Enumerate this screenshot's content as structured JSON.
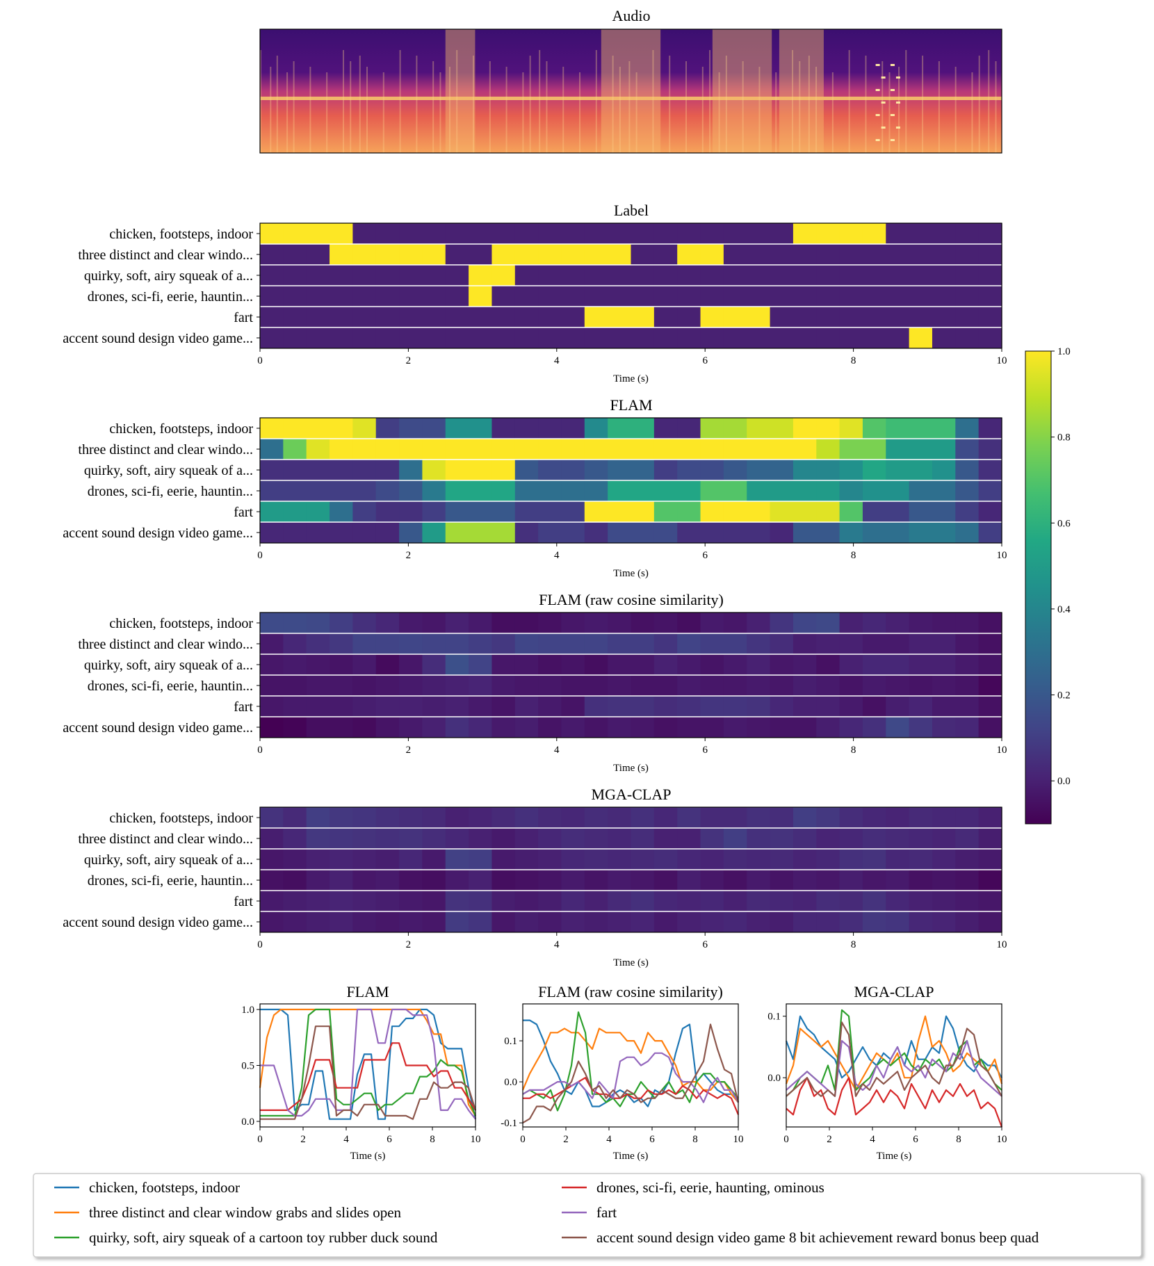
{
  "colors": {
    "viridis": [
      "#440154",
      "#482475",
      "#414487",
      "#355f8d",
      "#2a788e",
      "#21918c",
      "#22a884",
      "#44bf70",
      "#7ad151",
      "#bddf26",
      "#fde725"
    ],
    "series": [
      "#1f77b4",
      "#ff7f0e",
      "#2ca02c",
      "#d62728",
      "#9467bd",
      "#8c564b"
    ]
  },
  "chart_data": [
    {
      "type": "heatmap",
      "id": "audio",
      "title": "Audio",
      "note": "spectrogram (inferno colormap), no axes",
      "bright_events_s": [
        [
          2.5,
          2.9
        ],
        [
          4.6,
          5.4
        ],
        [
          6.1,
          6.9
        ],
        [
          7.0,
          7.6
        ]
      ],
      "blips_s": [
        8.3,
        8.5
      ]
    },
    {
      "type": "heatmap",
      "id": "label",
      "title": "Label",
      "rows": [
        "chicken, footsteps, indoor",
        "three distinct and clear windo...",
        "quirky, soft, airy squeak of a...",
        "drones, sci-fi, eerie, hauntin...",
        "fart",
        "accent sound design video game..."
      ],
      "xlabel": "Time (s)",
      "xlim": [
        0,
        10
      ],
      "xticks": [
        "0",
        "2",
        "4",
        "6",
        "8",
        "10"
      ],
      "ncols": 32,
      "values": [
        [
          1,
          1,
          1,
          1,
          0,
          0,
          0,
          0,
          0,
          0,
          0,
          0,
          0,
          0,
          0,
          0,
          0,
          0,
          0,
          0,
          0,
          0,
          0,
          1,
          1,
          1,
          1,
          0,
          0,
          0,
          0,
          0
        ],
        [
          0,
          0,
          0,
          1,
          1,
          1,
          1,
          1,
          0,
          0,
          1,
          1,
          1,
          1,
          1,
          1,
          0,
          0,
          1,
          1,
          0,
          0,
          0,
          0,
          0,
          0,
          0,
          0,
          0,
          0,
          0,
          0
        ],
        [
          0,
          0,
          0,
          0,
          0,
          0,
          0,
          0,
          0,
          1,
          1,
          0,
          0,
          0,
          0,
          0,
          0,
          0,
          0,
          0,
          0,
          0,
          0,
          0,
          0,
          0,
          0,
          0,
          0,
          0,
          0,
          0
        ],
        [
          0,
          0,
          0,
          0,
          0,
          0,
          0,
          0,
          0,
          1,
          0,
          0,
          0,
          0,
          0,
          0,
          0,
          0,
          0,
          0,
          0,
          0,
          0,
          0,
          0,
          0,
          0,
          0,
          0,
          0,
          0,
          0
        ],
        [
          0,
          0,
          0,
          0,
          0,
          0,
          0,
          0,
          0,
          0,
          0,
          0,
          0,
          0,
          1,
          1,
          1,
          0,
          0,
          1,
          1,
          1,
          0,
          0,
          0,
          0,
          0,
          0,
          0,
          0,
          0,
          0
        ],
        [
          0,
          0,
          0,
          0,
          0,
          0,
          0,
          0,
          0,
          0,
          0,
          0,
          0,
          0,
          0,
          0,
          0,
          0,
          0,
          0,
          0,
          0,
          0,
          0,
          0,
          0,
          0,
          0,
          1,
          0,
          0,
          0
        ]
      ]
    },
    {
      "type": "heatmap",
      "id": "flam",
      "title": "FLAM",
      "rows": [
        "chicken, footsteps, indoor",
        "three distinct and clear windo...",
        "quirky, soft, airy squeak of a...",
        "drones, sci-fi, eerie, hauntin...",
        "fart",
        "accent sound design video game..."
      ],
      "xlabel": "Time (s)",
      "xlim": [
        0,
        10
      ],
      "xticks": [
        "0",
        "2",
        "4",
        "6",
        "8",
        "10"
      ],
      "ncols": 32,
      "values": [
        [
          1.0,
          1.0,
          1.0,
          1.0,
          0.95,
          0.1,
          0.15,
          0.15,
          0.45,
          0.45,
          0.02,
          0.02,
          0.02,
          0.02,
          0.42,
          0.6,
          0.6,
          0.02,
          0.02,
          0.85,
          0.85,
          0.92,
          0.92,
          1.0,
          1.0,
          0.95,
          0.7,
          0.65,
          0.65,
          0.65,
          0.3,
          0.02
        ],
        [
          0.3,
          0.75,
          0.95,
          1.0,
          1.0,
          1.0,
          1.0,
          1.0,
          1.0,
          1.0,
          1.0,
          1.0,
          1.0,
          1.0,
          1.0,
          1.0,
          1.0,
          1.0,
          1.0,
          1.0,
          1.0,
          1.0,
          1.0,
          1.0,
          0.9,
          0.78,
          0.78,
          0.5,
          0.5,
          0.5,
          0.15,
          0.05
        ],
        [
          0.05,
          0.05,
          0.05,
          0.05,
          0.05,
          0.05,
          0.3,
          0.95,
          1.0,
          1.0,
          1.0,
          0.2,
          0.15,
          0.15,
          0.2,
          0.25,
          0.25,
          0.1,
          0.15,
          0.15,
          0.2,
          0.25,
          0.25,
          0.4,
          0.4,
          0.45,
          0.55,
          0.5,
          0.5,
          0.45,
          0.2,
          0.05
        ],
        [
          0.1,
          0.1,
          0.1,
          0.1,
          0.1,
          0.15,
          0.2,
          0.35,
          0.55,
          0.55,
          0.55,
          0.3,
          0.3,
          0.3,
          0.3,
          0.55,
          0.55,
          0.55,
          0.55,
          0.7,
          0.7,
          0.5,
          0.5,
          0.5,
          0.5,
          0.4,
          0.45,
          0.45,
          0.3,
          0.3,
          0.2,
          0.1
        ],
        [
          0.5,
          0.5,
          0.5,
          0.3,
          0.1,
          0.05,
          0.05,
          0.1,
          0.2,
          0.2,
          0.2,
          0.1,
          0.1,
          0.1,
          1.0,
          1.0,
          1.0,
          0.7,
          0.7,
          1.0,
          1.0,
          1.0,
          0.95,
          0.95,
          0.95,
          0.7,
          0.1,
          0.1,
          0.2,
          0.2,
          0.1,
          0.02
        ],
        [
          0.02,
          0.02,
          0.02,
          0.02,
          0.02,
          0.02,
          0.2,
          0.5,
          0.85,
          0.85,
          0.85,
          0.05,
          0.1,
          0.1,
          0.05,
          0.15,
          0.15,
          0.15,
          0.05,
          0.05,
          0.05,
          0.05,
          0.02,
          0.2,
          0.2,
          0.35,
          0.3,
          0.3,
          0.35,
          0.35,
          0.3,
          0.1
        ]
      ]
    },
    {
      "type": "heatmap",
      "id": "flam_raw",
      "title": "FLAM (raw cosine similarity)",
      "rows": [
        "chicken, footsteps, indoor",
        "three distinct and clear windo...",
        "quirky, soft, airy squeak of a...",
        "drones, sci-fi, eerie, hauntin...",
        "fart",
        "accent sound design video game..."
      ],
      "xlabel": "Time (s)",
      "xlim": [
        0,
        10
      ],
      "xticks": [
        "0",
        "2",
        "4",
        "6",
        "8",
        "10"
      ],
      "ncols": 32,
      "values": [
        [
          0.15,
          0.15,
          0.14,
          0.1,
          0.05,
          0.02,
          -0.02,
          -0.03,
          0.0,
          -0.02,
          -0.06,
          -0.06,
          -0.05,
          -0.03,
          -0.02,
          -0.03,
          -0.05,
          -0.04,
          -0.06,
          -0.02,
          -0.03,
          0.0,
          0.07,
          0.13,
          0.14,
          0.0,
          0.02,
          0.0,
          -0.02,
          -0.03,
          -0.03,
          -0.05
        ],
        [
          -0.02,
          0.02,
          0.05,
          0.08,
          0.12,
          0.12,
          0.13,
          0.12,
          0.12,
          0.1,
          0.08,
          0.13,
          0.12,
          0.12,
          0.12,
          0.1,
          0.1,
          0.07,
          0.12,
          0.1,
          0.1,
          0.07,
          0.04,
          -0.01,
          0.0,
          0.0,
          -0.02,
          -0.02,
          0.0,
          0.0,
          -0.03,
          -0.05
        ],
        [
          -0.03,
          -0.02,
          -0.03,
          -0.04,
          -0.02,
          -0.07,
          -0.03,
          0.04,
          0.17,
          0.12,
          -0.03,
          -0.03,
          -0.05,
          -0.04,
          -0.06,
          -0.03,
          -0.03,
          0.0,
          -0.02,
          -0.04,
          -0.02,
          0.0,
          -0.03,
          -0.02,
          -0.05,
          0.0,
          0.02,
          0.02,
          0.0,
          0.0,
          -0.02,
          -0.04
        ],
        [
          -0.04,
          -0.04,
          -0.03,
          -0.03,
          -0.04,
          -0.03,
          -0.02,
          -0.01,
          0.0,
          0.01,
          -0.02,
          -0.03,
          -0.03,
          -0.04,
          -0.04,
          -0.03,
          -0.04,
          -0.04,
          -0.02,
          -0.03,
          -0.03,
          -0.02,
          -0.03,
          -0.01,
          -0.02,
          -0.04,
          -0.02,
          -0.03,
          -0.04,
          -0.03,
          -0.04,
          -0.08
        ],
        [
          -0.03,
          -0.02,
          -0.02,
          -0.02,
          -0.01,
          0.0,
          0.0,
          -0.01,
          0.0,
          -0.02,
          -0.04,
          0.0,
          -0.02,
          -0.04,
          0.05,
          0.06,
          0.06,
          0.04,
          0.05,
          0.07,
          0.07,
          0.06,
          0.02,
          0.0,
          0.0,
          -0.02,
          -0.05,
          -0.01,
          0.01,
          -0.02,
          -0.02,
          -0.05
        ],
        [
          -0.1,
          -0.09,
          -0.06,
          -0.06,
          -0.07,
          -0.04,
          -0.02,
          0.0,
          0.05,
          0.02,
          -0.02,
          -0.01,
          -0.04,
          -0.02,
          -0.04,
          -0.02,
          -0.03,
          -0.05,
          -0.04,
          -0.04,
          -0.02,
          -0.03,
          -0.04,
          -0.04,
          -0.01,
          0.02,
          0.05,
          0.14,
          0.08,
          0.03,
          0.02,
          -0.05
        ]
      ]
    },
    {
      "type": "heatmap",
      "id": "mgaclap",
      "title": "MGA-CLAP",
      "rows": [
        "chicken, footsteps, indoor",
        "three distinct and clear windo...",
        "quirky, soft, airy squeak of a...",
        "drones, sci-fi, eerie, hauntin...",
        "fart",
        "accent sound design video game..."
      ],
      "xlabel": "Time (s)",
      "xlim": [
        0,
        10
      ],
      "xticks": [
        "0",
        "2",
        "4",
        "6",
        "8",
        "10"
      ],
      "ncols": 32,
      "values": [
        [
          0.06,
          0.03,
          0.1,
          0.08,
          0.07,
          0.05,
          0.04,
          0.03,
          0.0,
          0.01,
          0.03,
          0.05,
          0.03,
          0.02,
          0.04,
          0.03,
          0.05,
          0.02,
          0.06,
          0.03,
          0.03,
          0.05,
          0.04,
          0.1,
          0.08,
          0.04,
          0.02,
          0.01,
          0.03,
          0.02,
          0.02,
          0.0
        ],
        [
          -0.01,
          0.02,
          0.08,
          0.07,
          0.06,
          0.05,
          0.06,
          0.04,
          0.02,
          0.0,
          -0.02,
          0.0,
          0.02,
          0.04,
          0.03,
          0.02,
          0.04,
          0.0,
          0.0,
          0.06,
          0.1,
          0.05,
          0.06,
          0.04,
          0.01,
          0.02,
          0.04,
          0.03,
          0.02,
          0.01,
          0.03,
          -0.01
        ],
        [
          -0.03,
          -0.02,
          0.0,
          0.01,
          0.0,
          -0.01,
          0.02,
          -0.02,
          0.11,
          0.1,
          -0.02,
          -0.01,
          0.0,
          0.02,
          0.03,
          0.02,
          0.03,
          0.04,
          0.02,
          0.01,
          0.03,
          0.02,
          0.03,
          0.01,
          0.02,
          0.05,
          0.06,
          0.02,
          0.03,
          0.01,
          -0.01,
          -0.02
        ],
        [
          -0.05,
          -0.06,
          -0.02,
          0.0,
          -0.03,
          -0.02,
          -0.05,
          -0.06,
          -0.02,
          0.0,
          -0.06,
          -0.05,
          -0.04,
          -0.02,
          -0.04,
          -0.02,
          -0.03,
          -0.05,
          -0.01,
          -0.03,
          -0.05,
          -0.02,
          -0.04,
          -0.02,
          -0.03,
          -0.01,
          -0.03,
          -0.02,
          -0.05,
          -0.04,
          -0.05,
          -0.08
        ],
        [
          -0.02,
          -0.01,
          0.0,
          0.01,
          0.0,
          -0.01,
          -0.02,
          -0.03,
          0.06,
          0.05,
          -0.01,
          -0.02,
          -0.01,
          0.02,
          0.0,
          0.03,
          0.05,
          0.02,
          0.01,
          0.02,
          0.0,
          0.03,
          0.02,
          0.01,
          0.04,
          0.03,
          0.06,
          0.02,
          0.0,
          -0.01,
          -0.02,
          -0.03
        ],
        [
          -0.03,
          -0.02,
          -0.01,
          0.0,
          -0.02,
          -0.03,
          -0.02,
          -0.03,
          0.09,
          0.07,
          -0.03,
          -0.01,
          -0.02,
          0.0,
          -0.01,
          0.0,
          0.01,
          -0.02,
          0.0,
          0.01,
          0.02,
          0.0,
          -0.01,
          0.02,
          0.02,
          0.04,
          0.08,
          0.07,
          0.02,
          0.01,
          -0.01,
          -0.03
        ]
      ]
    },
    {
      "type": "line",
      "id": "line_flam",
      "title": "FLAM",
      "xlabel": "Time (s)",
      "xlim": [
        0,
        10
      ],
      "ylim": [
        -0.05,
        1.05
      ],
      "xticks": [
        0,
        2,
        4,
        6,
        8,
        10
      ],
      "yticks": [
        0.0,
        0.5,
        1.0
      ],
      "ytick_labels": [
        "0.0",
        "0.5",
        "1.0"
      ],
      "source": "flam"
    },
    {
      "type": "line",
      "id": "line_flam_raw",
      "title": "FLAM (raw cosine similarity)",
      "xlabel": "Time (s)",
      "xlim": [
        0,
        10
      ],
      "ylim": [
        -0.11,
        0.19
      ],
      "xticks": [
        0,
        2,
        4,
        6,
        8,
        10
      ],
      "yticks": [
        -0.1,
        0.0,
        0.1
      ],
      "ytick_labels": [
        "-0.1",
        "0.0",
        "0.1"
      ],
      "source": "flam_raw"
    },
    {
      "type": "line",
      "id": "line_mgaclap",
      "title": "MGA-CLAP",
      "xlabel": "Time (s)",
      "xlim": [
        0,
        10
      ],
      "ylim": [
        -0.08,
        0.12
      ],
      "xticks": [
        0,
        2,
        4,
        6,
        8,
        10
      ],
      "yticks": [
        0.0,
        0.1
      ],
      "ytick_labels": [
        "0.0",
        "0.1"
      ],
      "source": "mgaclap"
    }
  ],
  "colorbar": {
    "vmin": -0.1,
    "vmax": 1.0,
    "ticks": [
      0.0,
      0.2,
      0.4,
      0.6,
      0.8,
      1.0
    ],
    "tick_labels": [
      "0.0",
      "0.2",
      "0.4",
      "0.6",
      "0.8",
      "1.0"
    ]
  },
  "legend": {
    "entries": [
      "chicken, footsteps, indoor",
      "three distinct and clear window grabs and slides open",
      "quirky, soft, airy squeak of a cartoon toy rubber duck sound",
      "drones, sci-fi, eerie, haunting, ominous",
      "fart",
      "accent sound design video game 8 bit achievement reward bonus beep quad"
    ]
  }
}
